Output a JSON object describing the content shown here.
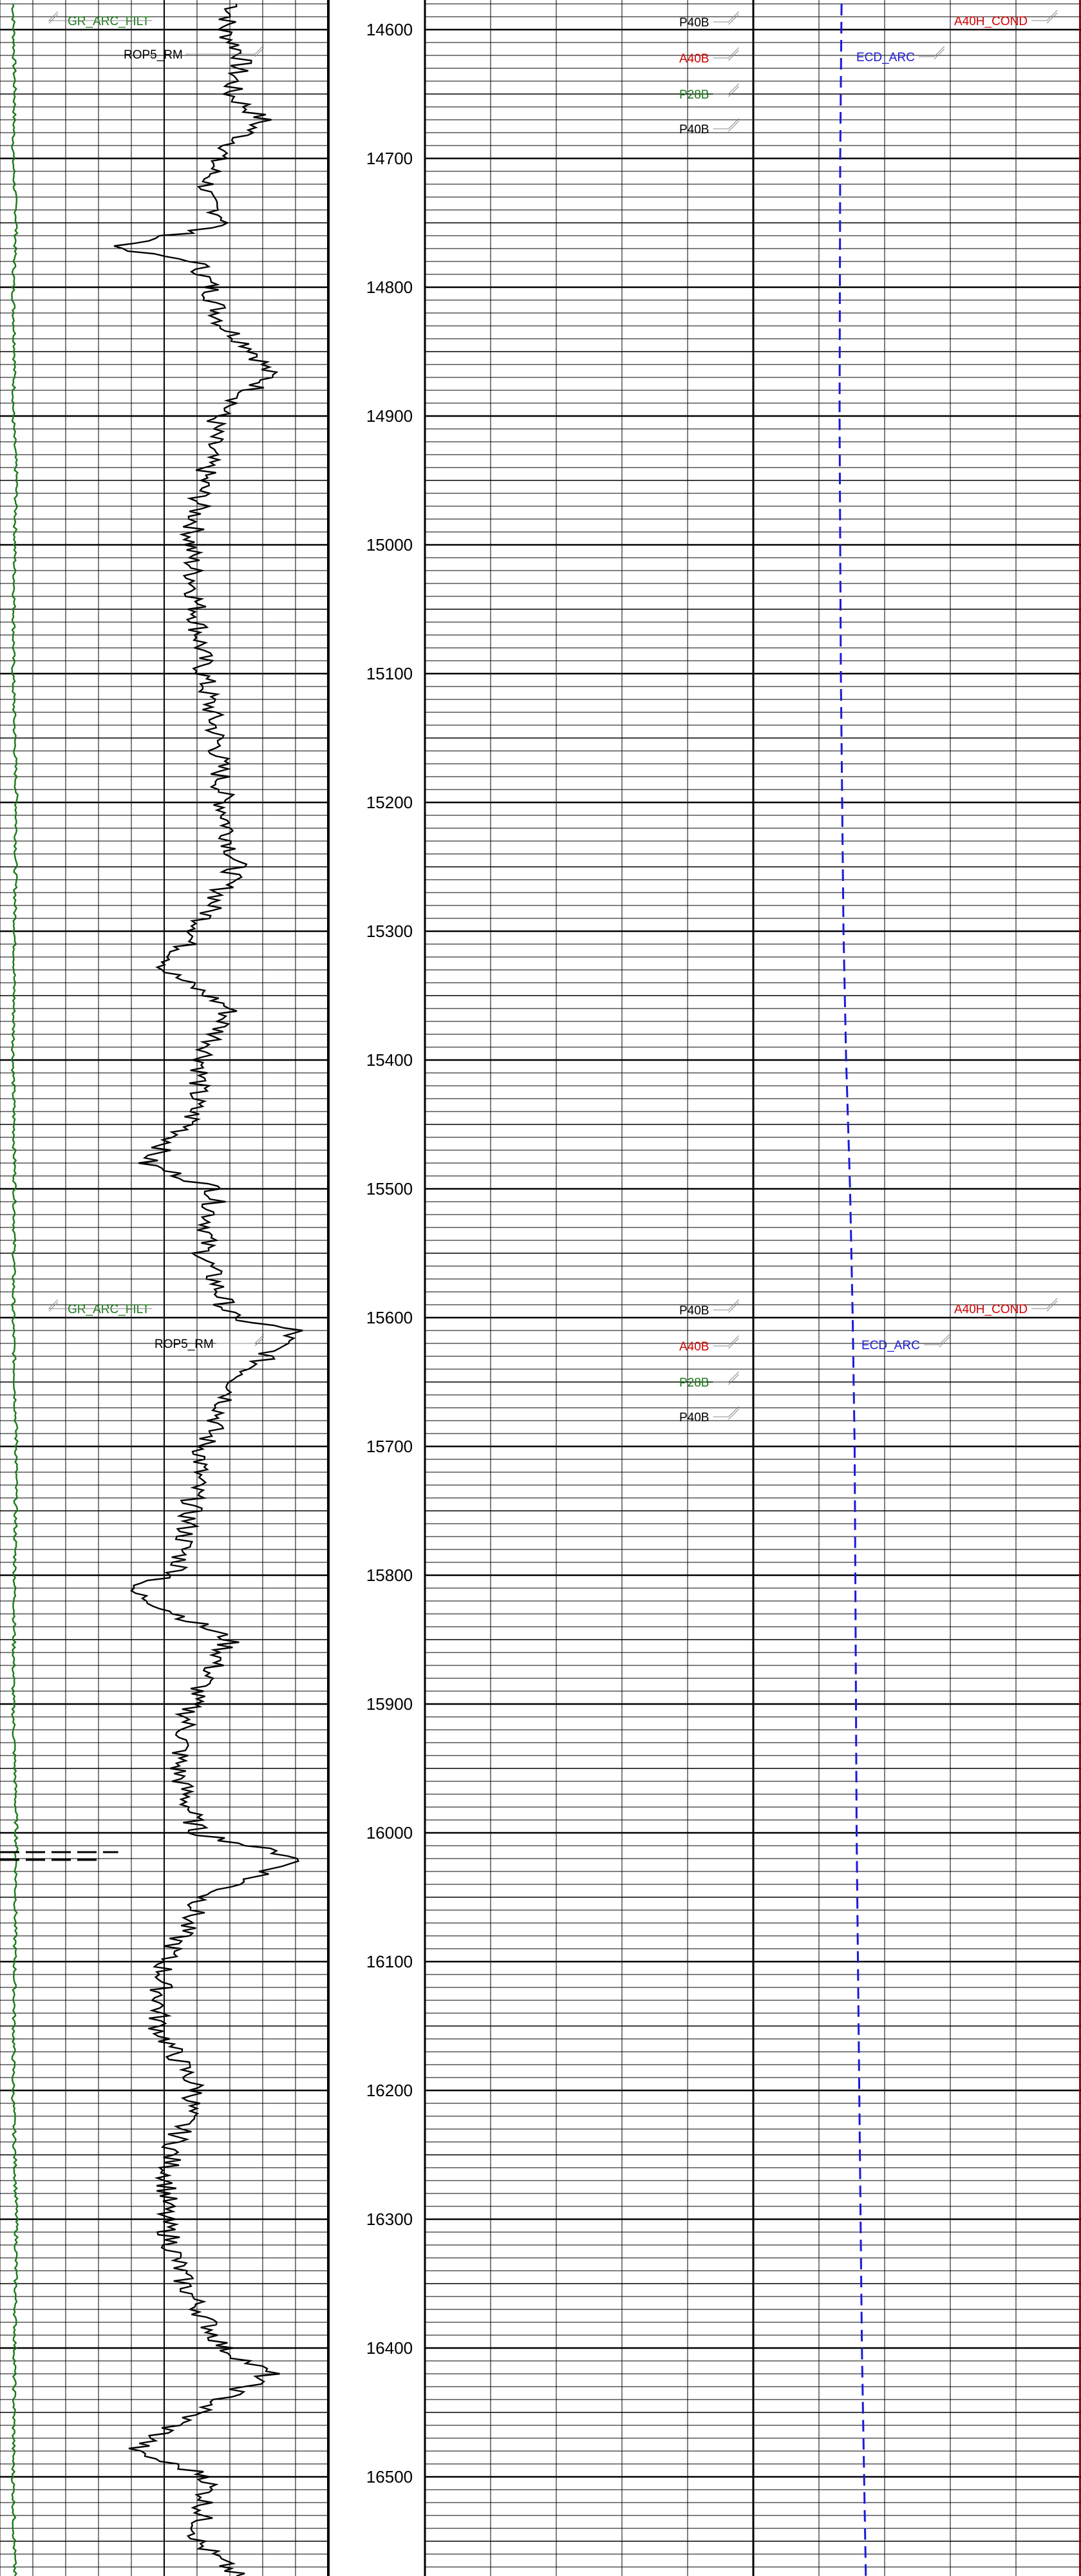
{
  "chart_data": {
    "type": "line",
    "title": "",
    "depth_axis": {
      "min": 14577,
      "max": 16577,
      "major_step": 100,
      "minor_step": 10
    },
    "depth_ticks": [
      14600,
      14700,
      14800,
      14900,
      15000,
      15100,
      15200,
      15300,
      15400,
      15500,
      15600,
      15700,
      15800,
      15900,
      16000,
      16100,
      16200,
      16300,
      16400,
      16500
    ],
    "tracks": [
      {
        "name": "track-1",
        "curves": [
          {
            "name": "GR_ARC_FILT",
            "color": "#1a7a1a",
            "style": "solid",
            "points": [
              [
                14580,
                0.04
              ],
              [
                14650,
                0.045
              ],
              [
                14700,
                0.04
              ],
              [
                14750,
                0.05
              ],
              [
                14800,
                0.04
              ],
              [
                14850,
                0.045
              ],
              [
                14900,
                0.04
              ],
              [
                14950,
                0.05
              ],
              [
                15000,
                0.045
              ],
              [
                15100,
                0.04
              ],
              [
                15200,
                0.05
              ],
              [
                15300,
                0.045
              ],
              [
                15400,
                0.04
              ],
              [
                15500,
                0.045
              ],
              [
                15600,
                0.04
              ],
              [
                15700,
                0.05
              ],
              [
                15800,
                0.045
              ],
              [
                15900,
                0.04
              ],
              [
                16000,
                0.05
              ],
              [
                16100,
                0.045
              ],
              [
                16200,
                0.04
              ],
              [
                16300,
                0.05
              ],
              [
                16400,
                0.045
              ],
              [
                16500,
                0.04
              ],
              [
                16577,
                0.045
              ]
            ]
          },
          {
            "name": "ROP5_RM",
            "color": "#000000",
            "style": "solid",
            "points": [
              [
                14580,
                0.72
              ],
              [
                14600,
                0.68
              ],
              [
                14620,
                0.74
              ],
              [
                14650,
                0.7
              ],
              [
                14670,
                0.8
              ],
              [
                14700,
                0.66
              ],
              [
                14730,
                0.62
              ],
              [
                14750,
                0.7
              ],
              [
                14770,
                0.34
              ],
              [
                14780,
                0.6
              ],
              [
                14800,
                0.64
              ],
              [
                14830,
                0.68
              ],
              [
                14850,
                0.78
              ],
              [
                14870,
                0.82
              ],
              [
                14900,
                0.66
              ],
              [
                14950,
                0.62
              ],
              [
                15000,
                0.58
              ],
              [
                15050,
                0.6
              ],
              [
                15100,
                0.62
              ],
              [
                15150,
                0.66
              ],
              [
                15200,
                0.68
              ],
              [
                15250,
                0.72
              ],
              [
                15300,
                0.6
              ],
              [
                15330,
                0.5
              ],
              [
                15360,
                0.7
              ],
              [
                15400,
                0.62
              ],
              [
                15450,
                0.58
              ],
              [
                15480,
                0.44
              ],
              [
                15500,
                0.66
              ],
              [
                15550,
                0.62
              ],
              [
                15600,
                0.7
              ],
              [
                15610,
                0.9
              ],
              [
                15650,
                0.72
              ],
              [
                15700,
                0.62
              ],
              [
                15750,
                0.58
              ],
              [
                15800,
                0.54
              ],
              [
                15810,
                0.38
              ],
              [
                15850,
                0.7
              ],
              [
                15900,
                0.58
              ],
              [
                15950,
                0.54
              ],
              [
                16000,
                0.6
              ],
              [
                16020,
                0.92
              ],
              [
                16050,
                0.62
              ],
              [
                16100,
                0.5
              ],
              [
                16150,
                0.48
              ],
              [
                16200,
                0.6
              ],
              [
                16250,
                0.52
              ],
              [
                16300,
                0.5
              ],
              [
                16350,
                0.56
              ],
              [
                16400,
                0.68
              ],
              [
                16420,
                0.82
              ],
              [
                16450,
                0.6
              ],
              [
                16480,
                0.4
              ],
              [
                16500,
                0.64
              ],
              [
                16550,
                0.6
              ],
              [
                16577,
                0.72
              ]
            ]
          },
          {
            "name": "",
            "color": "#000000",
            "style": "dashed",
            "points": [
              [
                16015,
                0.0
              ],
              [
                16015,
                0.36
              ],
              [
                16021,
                0.0
              ],
              [
                16021,
                0.3
              ]
            ]
          }
        ],
        "curve_labels": [
          {
            "text": "GR_ARC_FILT",
            "color": "#1a7a1a",
            "depth": 14593
          },
          {
            "text": "ROP5_RM",
            "color": "#000000",
            "depth": 14619
          },
          {
            "text": "GR_ARC_FILT",
            "color": "#1a7a1a",
            "depth": 15593
          },
          {
            "text": "ROP5_RM",
            "color": "#000000",
            "depth": 15620
          }
        ]
      },
      {
        "name": "track-3",
        "curve_labels": [
          {
            "text": "P40B",
            "color": "#000000",
            "depth": 14594
          },
          {
            "text": "A40B",
            "color": "#d00000",
            "depth": 14622
          },
          {
            "text": "P28B",
            "color": "#1a7a1a",
            "depth": 14650
          },
          {
            "text": "P40B",
            "color": "#000000",
            "depth": 14677
          },
          {
            "text": "ECD_ARC",
            "color": "#1a1adc",
            "depth": 14621
          },
          {
            "text": "A40H_COND",
            "color": "#d00000",
            "depth": 14593
          },
          {
            "text": "P40B",
            "color": "#000000",
            "depth": 15594
          },
          {
            "text": "A40B",
            "color": "#d00000",
            "depth": 15622
          },
          {
            "text": "P28B",
            "color": "#1a7a1a",
            "depth": 15650
          },
          {
            "text": "P40B",
            "color": "#000000",
            "depth": 15677
          },
          {
            "text": "ECD_ARC",
            "color": "#1a1adc",
            "depth": 15621
          },
          {
            "text": "A40H_COND",
            "color": "#d00000",
            "depth": 15593
          }
        ],
        "curves": [
          {
            "name": "ECD_ARC",
            "color": "#1a1adc",
            "style": "dashed",
            "points": [
              [
                14580,
                0.635
              ],
              [
                14700,
                0.633
              ],
              [
                14900,
                0.632
              ],
              [
                15100,
                0.634
              ],
              [
                15300,
                0.638
              ],
              [
                15400,
                0.642
              ],
              [
                15500,
                0.648
              ],
              [
                15600,
                0.652
              ],
              [
                15700,
                0.655
              ],
              [
                15800,
                0.656
              ],
              [
                16000,
                0.658
              ],
              [
                16200,
                0.662
              ],
              [
                16400,
                0.666
              ],
              [
                16577,
                0.672
              ]
            ]
          }
        ]
      }
    ]
  }
}
